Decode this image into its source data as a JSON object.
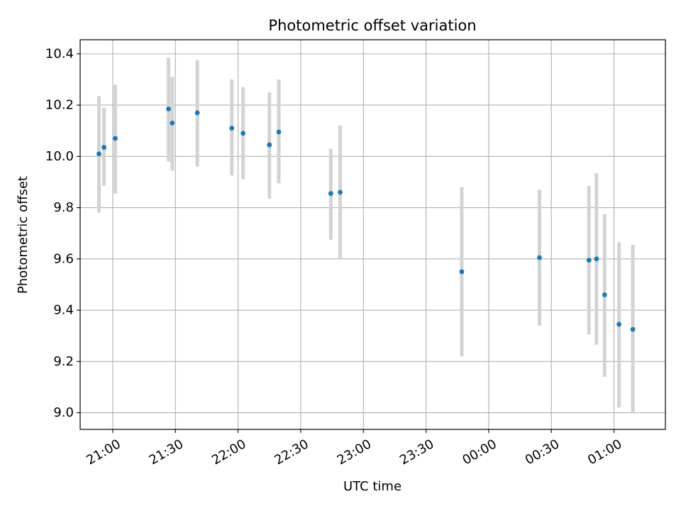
{
  "chart_data": {
    "type": "scatter",
    "title": "Photometric offset variation",
    "xlabel": "UTC time",
    "ylabel": "Photometric offset",
    "x_unit": "UTC time of day (hours after 00:00 of first night; values >24 wrap past midnight)",
    "xlim": [
      20.74,
      25.41
    ],
    "ylim": [
      8.935,
      10.455
    ],
    "grid": true,
    "x_ticks": [
      {
        "value": 21.0,
        "label": "21:00"
      },
      {
        "value": 21.5,
        "label": "21:30"
      },
      {
        "value": 22.0,
        "label": "22:00"
      },
      {
        "value": 22.5,
        "label": "22:30"
      },
      {
        "value": 23.0,
        "label": "23:00"
      },
      {
        "value": 23.5,
        "label": "23:30"
      },
      {
        "value": 24.0,
        "label": "00:00"
      },
      {
        "value": 24.5,
        "label": "00:30"
      },
      {
        "value": 25.0,
        "label": "01:00"
      }
    ],
    "y_ticks": [
      {
        "value": 9.0,
        "label": "9.0"
      },
      {
        "value": 9.2,
        "label": "9.2"
      },
      {
        "value": 9.4,
        "label": "9.4"
      },
      {
        "value": 9.6,
        "label": "9.6"
      },
      {
        "value": 9.8,
        "label": "9.8"
      },
      {
        "value": 10.0,
        "label": "10.0"
      },
      {
        "value": 10.2,
        "label": "10.2"
      },
      {
        "value": 10.4,
        "label": "10.4"
      }
    ],
    "colors": {
      "point": "#1f77b4",
      "errorbar": "#d3d3d3",
      "grid": "#b0b0b0"
    },
    "points": [
      {
        "time": "20:53",
        "x": 20.89,
        "y": 10.01,
        "ylow": 9.78,
        "yhigh": 10.235
      },
      {
        "time": "20:56",
        "x": 20.93,
        "y": 10.035,
        "ylow": 9.885,
        "yhigh": 10.19
      },
      {
        "time": "21:01",
        "x": 21.02,
        "y": 10.07,
        "ylow": 9.855,
        "yhigh": 10.28
      },
      {
        "time": "21:27",
        "x": 21.445,
        "y": 10.185,
        "ylow": 9.98,
        "yhigh": 10.385
      },
      {
        "time": "21:28",
        "x": 21.475,
        "y": 10.13,
        "ylow": 9.945,
        "yhigh": 10.31
      },
      {
        "time": "21:41",
        "x": 21.675,
        "y": 10.17,
        "ylow": 9.96,
        "yhigh": 10.375
      },
      {
        "time": "21:57",
        "x": 21.95,
        "y": 10.11,
        "ylow": 9.925,
        "yhigh": 10.3
      },
      {
        "time": "22:02",
        "x": 22.04,
        "y": 10.09,
        "ylow": 9.91,
        "yhigh": 10.27
      },
      {
        "time": "22:15",
        "x": 22.25,
        "y": 10.045,
        "ylow": 9.835,
        "yhigh": 10.25
      },
      {
        "time": "22:19",
        "x": 22.325,
        "y": 10.095,
        "ylow": 9.895,
        "yhigh": 10.3
      },
      {
        "time": "22:44",
        "x": 22.74,
        "y": 9.855,
        "ylow": 9.675,
        "yhigh": 10.03
      },
      {
        "time": "22:48",
        "x": 22.815,
        "y": 9.86,
        "ylow": 9.6,
        "yhigh": 10.12
      },
      {
        "time": "23:47",
        "x": 23.785,
        "y": 9.55,
        "ylow": 9.22,
        "yhigh": 9.88
      },
      {
        "time": "00:24",
        "x": 24.405,
        "y": 9.605,
        "ylow": 9.34,
        "yhigh": 9.87
      },
      {
        "time": "00:47",
        "x": 24.8,
        "y": 9.595,
        "ylow": 9.305,
        "yhigh": 9.885
      },
      {
        "time": "00:51",
        "x": 24.86,
        "y": 9.6,
        "ylow": 9.265,
        "yhigh": 9.935
      },
      {
        "time": "00:55",
        "x": 24.925,
        "y": 9.46,
        "ylow": 9.14,
        "yhigh": 9.775
      },
      {
        "time": "01:02",
        "x": 25.04,
        "y": 9.345,
        "ylow": 9.02,
        "yhigh": 9.665
      },
      {
        "time": "01:09",
        "x": 25.15,
        "y": 9.325,
        "ylow": 9.0,
        "yhigh": 9.655
      }
    ]
  }
}
